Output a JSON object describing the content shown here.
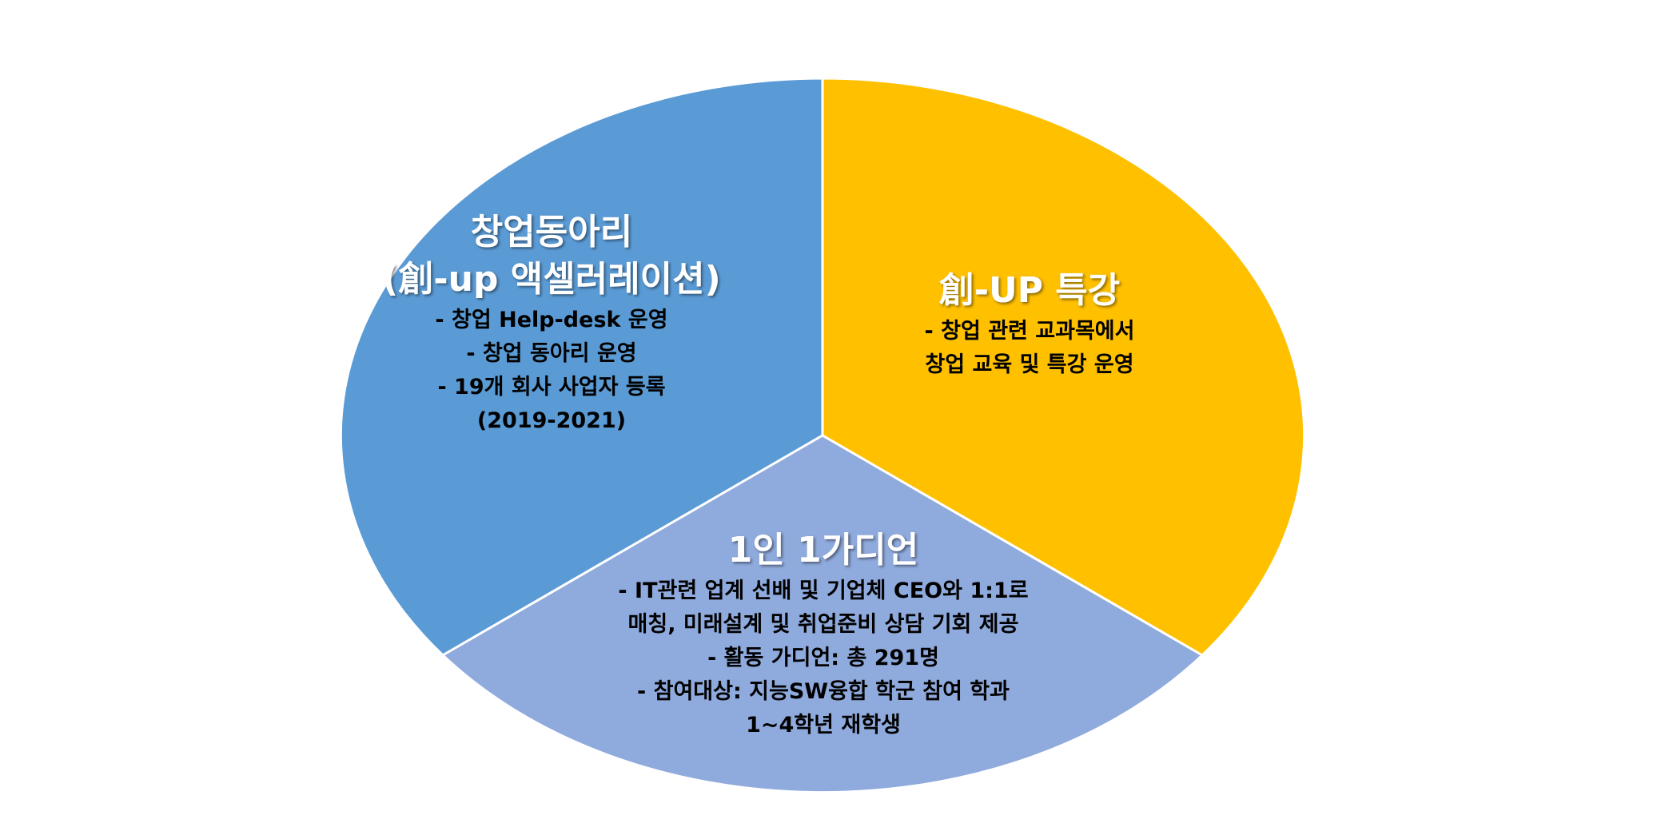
{
  "sectors": [
    {
      "id": "startup-club",
      "color": "#5B9BD5",
      "title_lines": [
        "창업동아리",
        "(創-up 액셀러레이션)"
      ],
      "lines": [
        "- 창업 Help-desk 운영",
        "- 창업 동아리 운영",
        "- 19개 회사 사업자 등록",
        "(2019-2021)"
      ]
    },
    {
      "id": "special-lecture",
      "color": "#FFC000",
      "title_lines": [
        "創-UP 특강"
      ],
      "lines": [
        "- 창업 관련 교과목에서",
        "창업 교육 및 특강 운영"
      ]
    },
    {
      "id": "one-guide",
      "color": "#8FAADC",
      "title_lines": [
        "1인 1가디언"
      ],
      "lines": [
        "- IT관련 업계 선배 및 기업체 CEO와 1:1로",
        "매칭, 미래설계 및 취업준비 상담 기회 제공",
        "- 활동 가디언: 총 291명",
        "- 참여대상: 지능SW융합 학군 참여 학과",
        "1~4학년 재학생"
      ]
    }
  ]
}
